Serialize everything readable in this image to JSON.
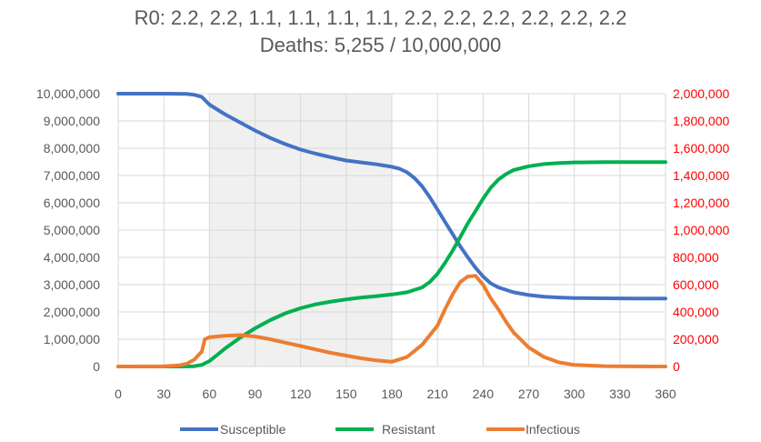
{
  "chart_data": {
    "type": "line",
    "title_lines": [
      "R0: 2.2, 2.2, 1.1, 1.1, 1.1, 1.1, 2.2, 2.2, 2.2, 2.2, 2.2, 2.2",
      "Deaths: 5,255 / 10,000,000"
    ],
    "x_ticks": [
      0,
      30,
      60,
      90,
      120,
      150,
      180,
      210,
      240,
      270,
      300,
      330,
      360
    ],
    "xlim": [
      0,
      360
    ],
    "left_axis": {
      "ylim": [
        0,
        10000000
      ],
      "ticks": [
        0,
        1000000,
        2000000,
        3000000,
        4000000,
        5000000,
        6000000,
        7000000,
        8000000,
        9000000,
        10000000
      ],
      "tick_labels": [
        "0",
        "1,000,000",
        "2,000,000",
        "3,000,000",
        "4,000,000",
        "5,000,000",
        "6,000,000",
        "7,000,000",
        "8,000,000",
        "9,000,000",
        "10,000,000"
      ],
      "color": "#595959"
    },
    "right_axis": {
      "ylim": [
        0,
        2000000
      ],
      "ticks": [
        0,
        200000,
        400000,
        600000,
        800000,
        1000000,
        1200000,
        1400000,
        1600000,
        1800000,
        2000000
      ],
      "tick_labels": [
        "0",
        "200,000",
        "400,000",
        "600,000",
        "800,000",
        "1,000,000",
        "1,200,000",
        "1,400,000",
        "1,600,000",
        "1,800,000",
        "2,000,000"
      ],
      "color": "#ff0000"
    },
    "shaded_x_range": [
      60,
      180
    ],
    "grid": true,
    "legend_position": "bottom",
    "series": [
      {
        "name": "Susceptible",
        "axis": "left",
        "color": "#4472c4",
        "points": [
          [
            0,
            10000000
          ],
          [
            30,
            10000000
          ],
          [
            45,
            9990000
          ],
          [
            50,
            9960000
          ],
          [
            55,
            9880000
          ],
          [
            60,
            9600000
          ],
          [
            70,
            9250000
          ],
          [
            80,
            8950000
          ],
          [
            90,
            8650000
          ],
          [
            100,
            8380000
          ],
          [
            110,
            8150000
          ],
          [
            120,
            7950000
          ],
          [
            130,
            7800000
          ],
          [
            140,
            7670000
          ],
          [
            150,
            7550000
          ],
          [
            160,
            7480000
          ],
          [
            170,
            7410000
          ],
          [
            180,
            7320000
          ],
          [
            185,
            7250000
          ],
          [
            190,
            7120000
          ],
          [
            195,
            6900000
          ],
          [
            200,
            6600000
          ],
          [
            205,
            6200000
          ],
          [
            210,
            5750000
          ],
          [
            215,
            5300000
          ],
          [
            220,
            4850000
          ],
          [
            225,
            4400000
          ],
          [
            230,
            4000000
          ],
          [
            235,
            3620000
          ],
          [
            240,
            3300000
          ],
          [
            245,
            3050000
          ],
          [
            250,
            2900000
          ],
          [
            260,
            2720000
          ],
          [
            270,
            2620000
          ],
          [
            280,
            2560000
          ],
          [
            290,
            2530000
          ],
          [
            300,
            2510000
          ],
          [
            320,
            2500000
          ],
          [
            340,
            2490000
          ],
          [
            360,
            2490000
          ]
        ]
      },
      {
        "name": "Resistant",
        "axis": "left",
        "color": "#00b050",
        "points": [
          [
            0,
            0
          ],
          [
            40,
            0
          ],
          [
            50,
            10000
          ],
          [
            55,
            60000
          ],
          [
            60,
            200000
          ],
          [
            65,
            420000
          ],
          [
            70,
            650000
          ],
          [
            80,
            1050000
          ],
          [
            90,
            1400000
          ],
          [
            100,
            1700000
          ],
          [
            110,
            1950000
          ],
          [
            120,
            2140000
          ],
          [
            130,
            2280000
          ],
          [
            140,
            2380000
          ],
          [
            150,
            2460000
          ],
          [
            160,
            2530000
          ],
          [
            170,
            2580000
          ],
          [
            180,
            2640000
          ],
          [
            190,
            2720000
          ],
          [
            200,
            2900000
          ],
          [
            205,
            3100000
          ],
          [
            210,
            3400000
          ],
          [
            215,
            3800000
          ],
          [
            220,
            4250000
          ],
          [
            225,
            4750000
          ],
          [
            230,
            5250000
          ],
          [
            235,
            5700000
          ],
          [
            240,
            6150000
          ],
          [
            245,
            6550000
          ],
          [
            250,
            6850000
          ],
          [
            255,
            7050000
          ],
          [
            260,
            7200000
          ],
          [
            270,
            7340000
          ],
          [
            280,
            7420000
          ],
          [
            290,
            7460000
          ],
          [
            300,
            7480000
          ],
          [
            320,
            7490000
          ],
          [
            340,
            7490000
          ],
          [
            360,
            7490000
          ]
        ]
      },
      {
        "name": "Infectious",
        "axis": "right",
        "color": "#ed7d31",
        "points": [
          [
            0,
            0
          ],
          [
            30,
            2000
          ],
          [
            40,
            8000
          ],
          [
            45,
            20000
          ],
          [
            50,
            50000
          ],
          [
            55,
            110000
          ],
          [
            57,
            200000
          ],
          [
            60,
            215000
          ],
          [
            70,
            225000
          ],
          [
            80,
            230000
          ],
          [
            90,
            220000
          ],
          [
            100,
            200000
          ],
          [
            110,
            175000
          ],
          [
            120,
            150000
          ],
          [
            130,
            125000
          ],
          [
            140,
            100000
          ],
          [
            150,
            80000
          ],
          [
            160,
            60000
          ],
          [
            170,
            45000
          ],
          [
            180,
            35000
          ],
          [
            190,
            70000
          ],
          [
            200,
            160000
          ],
          [
            210,
            300000
          ],
          [
            215,
            420000
          ],
          [
            220,
            530000
          ],
          [
            225,
            620000
          ],
          [
            230,
            660000
          ],
          [
            235,
            665000
          ],
          [
            240,
            600000
          ],
          [
            245,
            500000
          ],
          [
            250,
            420000
          ],
          [
            255,
            330000
          ],
          [
            260,
            250000
          ],
          [
            270,
            140000
          ],
          [
            280,
            70000
          ],
          [
            290,
            30000
          ],
          [
            300,
            12000
          ],
          [
            320,
            3000
          ],
          [
            340,
            1000
          ],
          [
            360,
            0
          ]
        ]
      }
    ]
  }
}
